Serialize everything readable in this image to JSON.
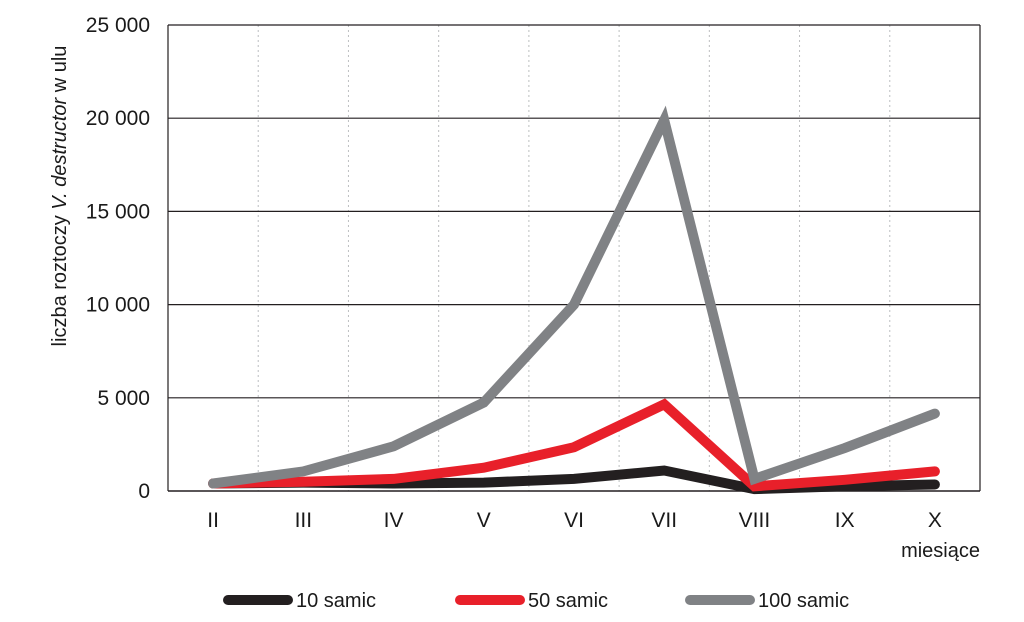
{
  "chart_data": {
    "type": "line",
    "categories": [
      "II",
      "III",
      "IV",
      "V",
      "VI",
      "VII",
      "VIII",
      "IX",
      "X"
    ],
    "ylim": [
      0,
      25000
    ],
    "yticks": [
      0,
      5000,
      10000,
      15000,
      20000,
      25000
    ],
    "ytick_labels": [
      "0",
      "5 000",
      "10 000",
      "15 000",
      "20 000",
      "25 000"
    ],
    "ylabel": {
      "prefix": "liczba roztoczy ",
      "italic": "V. destructor",
      "suffix": " w ulu"
    },
    "xlabel": "miesiące",
    "grid": {
      "horizontal": true,
      "vertical_dotted": true
    },
    "legend_position": "bottom",
    "series": [
      {
        "name": "10 samic",
        "color": "#231f20",
        "values": [
          400,
          450,
          400,
          450,
          650,
          1100,
          100,
          250,
          350
        ]
      },
      {
        "name": "50 samic",
        "color": "#e8202a",
        "values": [
          400,
          500,
          650,
          1250,
          2350,
          4650,
          250,
          600,
          1050
        ]
      },
      {
        "name": "100 samic",
        "color": "#808285",
        "values": [
          400,
          1050,
          2400,
          4750,
          10000,
          19900,
          650,
          2300,
          4150
        ]
      }
    ]
  }
}
